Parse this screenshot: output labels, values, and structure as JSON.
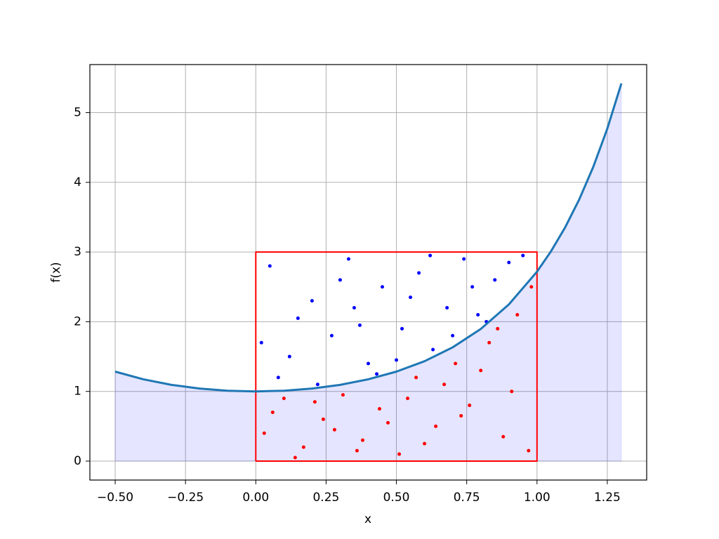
{
  "chart_data": {
    "type": "line",
    "x_label": "x",
    "y_label": "f(x)",
    "xlim": [
      -0.59,
      1.39
    ],
    "ylim": [
      -0.272,
      5.69
    ],
    "xticks": [
      {
        "value": -0.5,
        "label": "−0.50"
      },
      {
        "value": -0.25,
        "label": "−0.25"
      },
      {
        "value": 0,
        "label": "0.00"
      },
      {
        "value": 0.25,
        "label": "0.25"
      },
      {
        "value": 0.5,
        "label": "0.50"
      },
      {
        "value": 0.75,
        "label": "0.75"
      },
      {
        "value": 1,
        "label": "1.00"
      },
      {
        "value": 1.25,
        "label": "1.25"
      }
    ],
    "yticks": [
      0,
      1,
      2,
      3,
      4,
      5
    ],
    "grid": true,
    "series": [
      {
        "type": "area",
        "color": "#0000ff",
        "opacity": 0.1,
        "x": [
          -0.5,
          -0.4,
          -0.3,
          -0.2,
          -0.1,
          0,
          0.1,
          0.2,
          0.3,
          0.4,
          0.5,
          0.6,
          0.7,
          0.8,
          0.9,
          1.0,
          1.05,
          1.1,
          1.15,
          1.2,
          1.25,
          1.3
        ],
        "values": [
          1.284,
          1.174,
          1.094,
          1.041,
          1.01,
          1,
          1.01,
          1.041,
          1.094,
          1.174,
          1.284,
          1.433,
          1.632,
          1.896,
          2.248,
          2.718,
          3.012,
          3.353,
          3.753,
          4.221,
          4.771,
          5.419
        ]
      },
      {
        "type": "scatter",
        "color": "#0000ff",
        "x": [
          0.05,
          0.12,
          0.2,
          0.27,
          0.33,
          0.4,
          0.45,
          0.52,
          0.58,
          0.63,
          0.68,
          0.74,
          0.79,
          0.85,
          0.9,
          0.95,
          0.08,
          0.15,
          0.22,
          0.3,
          0.37,
          0.43,
          0.5,
          0.55,
          0.62,
          0.7,
          0.77,
          0.82,
          0.02,
          0.35
        ],
        "values": [
          2.8,
          1.5,
          2.3,
          1.8,
          2.9,
          1.4,
          2.5,
          1.9,
          2.7,
          1.6,
          2.2,
          2.9,
          2.1,
          2.6,
          2.85,
          2.95,
          1.2,
          2.05,
          1.1,
          2.6,
          1.95,
          1.25,
          1.45,
          2.35,
          2.95,
          1.8,
          2.5,
          2.0,
          1.7,
          2.2
        ]
      },
      {
        "type": "scatter",
        "color": "#ff0000",
        "x": [
          0.03,
          0.1,
          0.17,
          0.24,
          0.31,
          0.38,
          0.44,
          0.51,
          0.57,
          0.64,
          0.71,
          0.76,
          0.83,
          0.88,
          0.93,
          0.98,
          0.06,
          0.14,
          0.21,
          0.28,
          0.36,
          0.47,
          0.54,
          0.6,
          0.67,
          0.73,
          0.8,
          0.86,
          0.91,
          0.97
        ],
        "values": [
          0.4,
          0.9,
          0.2,
          0.6,
          0.95,
          0.3,
          0.75,
          0.1,
          1.2,
          0.5,
          1.4,
          0.8,
          1.7,
          0.35,
          2.1,
          2.5,
          0.7,
          0.05,
          0.85,
          0.45,
          0.15,
          0.55,
          0.9,
          0.25,
          1.1,
          0.65,
          1.3,
          1.9,
          1.0,
          0.15
        ]
      },
      {
        "type": "line",
        "color": "#ff0000",
        "width": 2,
        "x": [
          0,
          1,
          1,
          0,
          0
        ],
        "values": [
          0,
          0,
          3,
          3,
          0
        ]
      },
      {
        "type": "line",
        "color": "#1f77b4",
        "width": 3,
        "x": [
          -0.5,
          -0.4,
          -0.3,
          -0.2,
          -0.1,
          0,
          0.1,
          0.2,
          0.3,
          0.4,
          0.5,
          0.6,
          0.7,
          0.8,
          0.9,
          1.0,
          1.05,
          1.1,
          1.15,
          1.2,
          1.25,
          1.3
        ],
        "values": [
          1.284,
          1.174,
          1.094,
          1.041,
          1.01,
          1,
          1.01,
          1.041,
          1.094,
          1.174,
          1.284,
          1.433,
          1.632,
          1.896,
          2.248,
          2.718,
          3.012,
          3.353,
          3.753,
          4.221,
          4.771,
          5.419
        ]
      }
    ]
  }
}
